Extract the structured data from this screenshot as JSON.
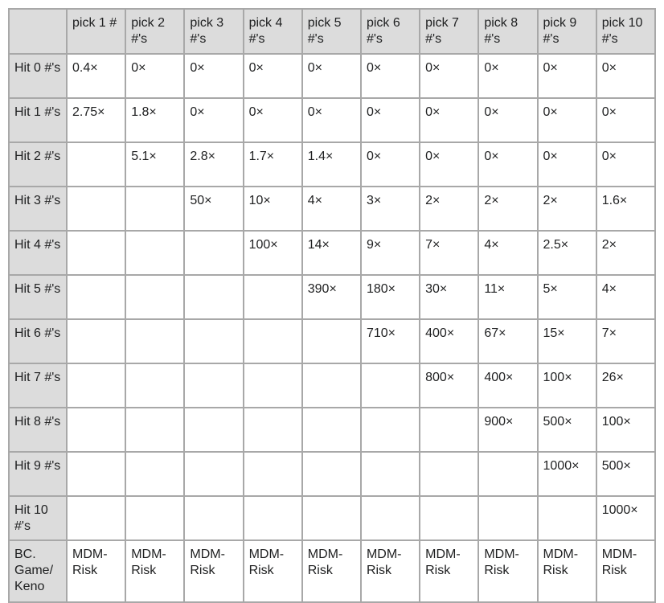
{
  "table": {
    "corner": "",
    "columns": [
      "pick 1 #",
      "pick 2 #'s",
      "pick 3 #'s",
      "pick 4 #'s",
      "pick 5 #'s",
      "pick 6 #'s",
      "pick 7 #'s",
      "pick 8 #'s",
      "pick 9 #'s",
      "pick 10 #'s"
    ],
    "rows": [
      {
        "label": "Hit 0 #'s",
        "cells": [
          "0.4×",
          "0×",
          "0×",
          "0×",
          "0×",
          "0×",
          "0×",
          "0×",
          "0×",
          "0×"
        ]
      },
      {
        "label": "Hit 1 #'s",
        "cells": [
          "2.75×",
          "1.8×",
          "0×",
          "0×",
          "0×",
          "0×",
          "0×",
          "0×",
          "0×",
          "0×"
        ]
      },
      {
        "label": "Hit 2 #'s",
        "cells": [
          "",
          "5.1×",
          "2.8×",
          "1.7×",
          "1.4×",
          "0×",
          "0×",
          "0×",
          "0×",
          "0×"
        ]
      },
      {
        "label": "Hit 3 #'s",
        "cells": [
          "",
          "",
          "50×",
          "10×",
          "4×",
          "3×",
          "2×",
          "2×",
          "2×",
          "1.6×"
        ]
      },
      {
        "label": "Hit 4 #'s",
        "cells": [
          "",
          "",
          "",
          "100×",
          "14×",
          "9×",
          "7×",
          "4×",
          "2.5×",
          "2×"
        ]
      },
      {
        "label": "Hit 5 #'s",
        "cells": [
          "",
          "",
          "",
          "",
          "390×",
          "180×",
          "30×",
          "11×",
          "5×",
          "4×"
        ]
      },
      {
        "label": "Hit 6 #'s",
        "cells": [
          "",
          "",
          "",
          "",
          "",
          "710×",
          "400×",
          "67×",
          "15×",
          "7×"
        ]
      },
      {
        "label": "Hit 7 #'s",
        "cells": [
          "",
          "",
          "",
          "",
          "",
          "",
          "800×",
          "400×",
          "100×",
          "26×"
        ]
      },
      {
        "label": "Hit 8 #'s",
        "cells": [
          "",
          "",
          "",
          "",
          "",
          "",
          "",
          "900×",
          "500×",
          "100×"
        ]
      },
      {
        "label": "Hit 9 #'s",
        "cells": [
          "",
          "",
          "",
          "",
          "",
          "",
          "",
          "",
          "1000×",
          "500×"
        ]
      },
      {
        "label": "Hit 10 #'s",
        "cells": [
          "",
          "",
          "",
          "",
          "",
          "",
          "",
          "",
          "",
          "1000×"
        ]
      },
      {
        "label": "BC. Game/ Keno",
        "cells": [
          "MDM-Risk",
          "MDM-Risk",
          "MDM-Risk",
          "MDM-Risk",
          "MDM-Risk",
          "MDM-Risk",
          "MDM-Risk",
          "MDM-Risk",
          "MDM-Risk",
          "MDM-Risk"
        ]
      }
    ]
  },
  "colors": {
    "header_bg": "#dcdcdc",
    "border": "#a8a8a8",
    "text": "#202122"
  }
}
